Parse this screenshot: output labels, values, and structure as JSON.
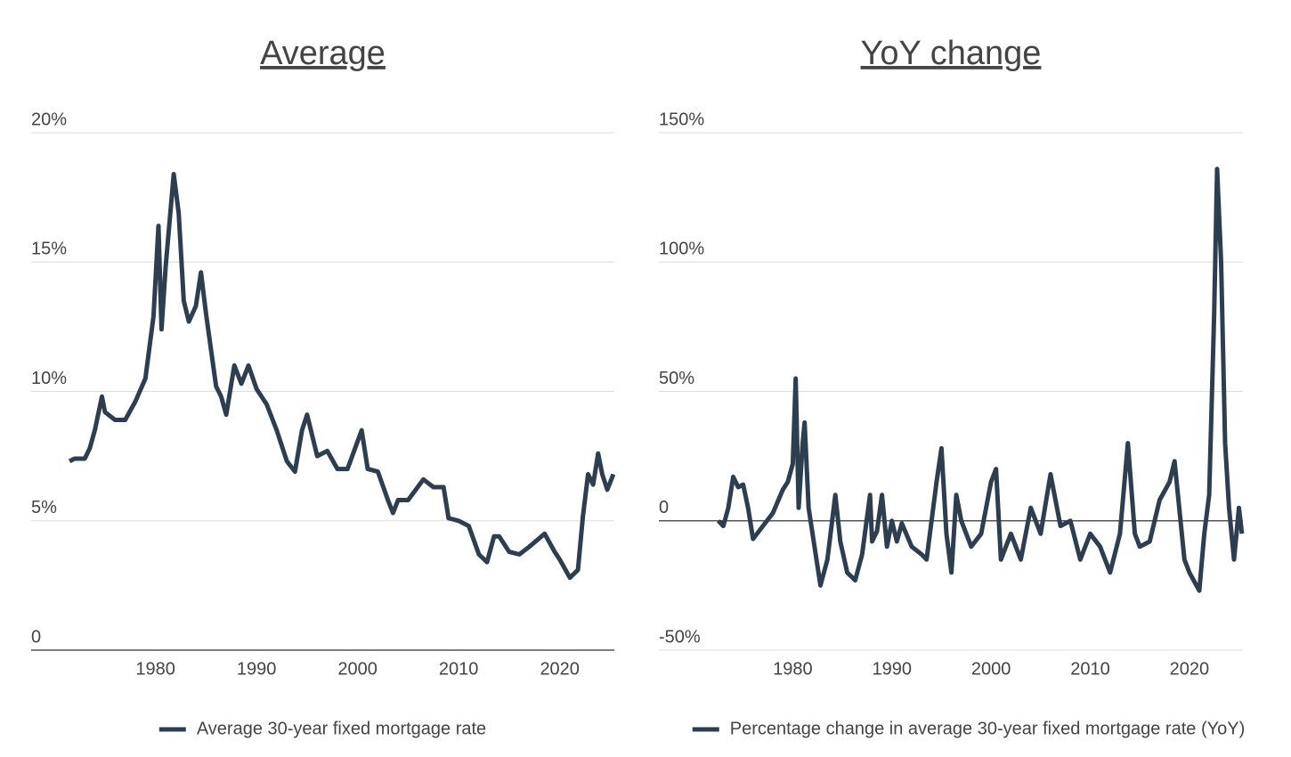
{
  "chart_data": [
    {
      "type": "line",
      "title": "Average",
      "x": [
        1971.5,
        1972,
        1973,
        1973.5,
        1974,
        1974.7,
        1975,
        1976,
        1977,
        1978,
        1979,
        1979.8,
        1980.3,
        1980.6,
        1981,
        1981.8,
        1982.3,
        1982.8,
        1983.3,
        1984,
        1984.5,
        1985,
        1986,
        1986.5,
        1987,
        1987.8,
        1988.5,
        1989.2,
        1990,
        1991,
        1992,
        1993,
        1993.8,
        1994.5,
        1995,
        1996,
        1997,
        1998,
        1999,
        2000.4,
        2001,
        2002,
        2003,
        2003.5,
        2004,
        2005,
        2006.5,
        2007.5,
        2008.5,
        2009,
        2010,
        2011,
        2012,
        2012.8,
        2013.5,
        2014,
        2015,
        2016,
        2017,
        2018.5,
        2019.5,
        2020,
        2021,
        2021.8,
        2022.3,
        2022.8,
        2023.3,
        2023.8,
        2024.2,
        2024.7,
        2025.3
      ],
      "series": [
        {
          "name": "Average 30-year fixed mortgage rate",
          "color": "#2d3e50",
          "values": [
            7.3,
            7.4,
            7.4,
            7.8,
            8.5,
            9.8,
            9.2,
            8.9,
            8.9,
            9.6,
            10.5,
            12.9,
            16.4,
            12.4,
            14.8,
            18.4,
            16.9,
            13.5,
            12.7,
            13.3,
            14.6,
            13,
            10.2,
            9.8,
            9.1,
            11.0,
            10.3,
            11.0,
            10.1,
            9.5,
            8.5,
            7.3,
            6.9,
            8.5,
            9.1,
            7.5,
            7.7,
            7.0,
            7.0,
            8.5,
            7.0,
            6.9,
            5.8,
            5.3,
            5.8,
            5.8,
            6.6,
            6.3,
            6.3,
            5.1,
            5.0,
            4.8,
            3.7,
            3.4,
            4.4,
            4.4,
            3.8,
            3.7,
            4.0,
            4.5,
            3.8,
            3.5,
            2.8,
            3.1,
            5.2,
            6.8,
            6.4,
            7.6,
            6.8,
            6.2,
            6.8
          ]
        }
      ],
      "xlim": [
        1967.7,
        2025.4
      ],
      "xticks": [
        1980,
        1990,
        2000,
        2010,
        2020
      ],
      "ylim": [
        0,
        20
      ],
      "yticks": [
        0,
        {
          "value": 5,
          "label": "5%"
        },
        {
          "value": 10,
          "label": "10%"
        },
        {
          "value": 15,
          "label": "15%"
        },
        {
          "value": 20,
          "label": "20%"
        }
      ],
      "grid": true,
      "legend": "bottom"
    },
    {
      "type": "line",
      "title": "YoY change",
      "x": [
        1972.5,
        1973,
        1973.5,
        1974,
        1974.5,
        1975,
        1975.5,
        1976,
        1977,
        1978,
        1979,
        1979.5,
        1980,
        1980.3,
        1980.6,
        1981,
        1981.2,
        1981.6,
        1982,
        1982.8,
        1983.5,
        1984.3,
        1984.8,
        1985.5,
        1986.3,
        1987,
        1987.8,
        1988,
        1988.5,
        1989,
        1989.5,
        1990,
        1990.5,
        1991,
        1992,
        1993,
        1993.5,
        1994.5,
        1995,
        1995.5,
        1996,
        1996.5,
        1997,
        1998,
        1999,
        2000,
        2000.5,
        2001,
        2002,
        2003,
        2004,
        2005,
        2006,
        2007,
        2008,
        2009,
        2010,
        2011,
        2012,
        2013,
        2013.8,
        2014.5,
        2015,
        2016,
        2017,
        2018,
        2018.5,
        2019.5,
        2020,
        2021,
        2021.5,
        2022,
        2022.5,
        2022.8,
        2023.2,
        2023.6,
        2024,
        2024.5,
        2025,
        2025.3
      ],
      "series": [
        {
          "name": "Percentage change in average 30-year fixed mortgage rate (YoY)",
          "color": "#2d3e50",
          "values": [
            0,
            -2,
            5,
            17,
            13,
            14,
            5,
            -7,
            -2,
            3,
            12,
            15,
            22,
            55,
            5,
            30,
            38,
            5,
            -5,
            -25,
            -15,
            10,
            -8,
            -20,
            -23,
            -13,
            10,
            -8,
            -4,
            10,
            -10,
            0,
            -8,
            -1,
            -10,
            -13,
            -15,
            15,
            28,
            -5,
            -20,
            10,
            0,
            -10,
            -5,
            15,
            20,
            -15,
            -5,
            -15,
            5,
            -5,
            18,
            -2,
            0,
            -15,
            -5,
            -10,
            -20,
            -5,
            30,
            -5,
            -10,
            -8,
            8,
            15,
            23,
            -15,
            -20,
            -27,
            -5,
            10,
            80,
            136,
            100,
            30,
            5,
            -15,
            5,
            -5
          ]
        }
      ],
      "xlim": [
        1966.5,
        2025.4
      ],
      "xticks": [
        1980,
        1990,
        2000,
        2010,
        2020
      ],
      "ylim": [
        -50,
        150
      ],
      "yticks": [
        {
          "value": -50,
          "label": "-50%"
        },
        0,
        {
          "value": 50,
          "label": "50%"
        },
        {
          "value": 100,
          "label": "100%"
        },
        {
          "value": 150,
          "label": "150%"
        }
      ],
      "grid": true,
      "legend": "bottom"
    }
  ]
}
